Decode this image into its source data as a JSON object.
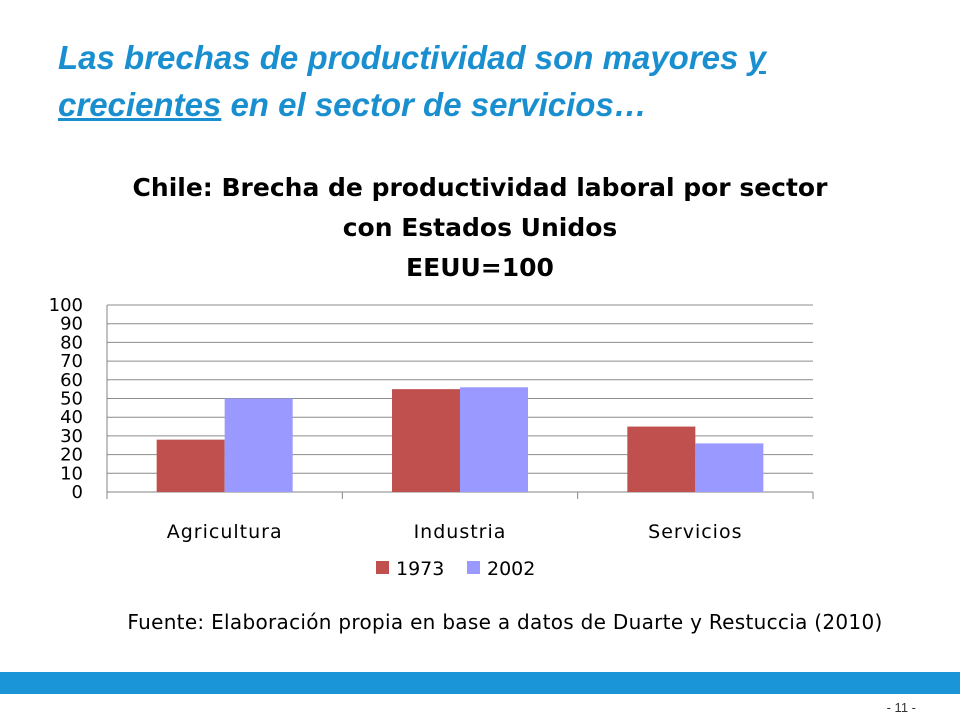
{
  "slide": {
    "title_part1": "Las brechas de productividad son mayores ",
    "title_underlined": "y crecientes",
    "title_part2": " en el sector de servicios…",
    "page_number": "- 11 -"
  },
  "chart_data": {
    "type": "bar",
    "title_lines": [
      "Chile: Brecha de productividad laboral por sector",
      "con Estados Unidos",
      "EEUU=100"
    ],
    "categories": [
      "Agricultura",
      "Industria",
      "Servicios"
    ],
    "series": [
      {
        "name": "1973",
        "color": "#c0504d",
        "values": [
          28,
          55,
          35
        ]
      },
      {
        "name": "2002",
        "color": "#9999ff",
        "values": [
          50,
          56,
          26
        ]
      }
    ],
    "ylim": [
      0,
      100
    ],
    "yticks": [
      0,
      10,
      20,
      30,
      40,
      50,
      60,
      70,
      80,
      90,
      100
    ],
    "grid": true,
    "legend": "bottom",
    "source": "Fuente: Elaboración propia en base a datos de Duarte y Restuccia (2010)"
  }
}
